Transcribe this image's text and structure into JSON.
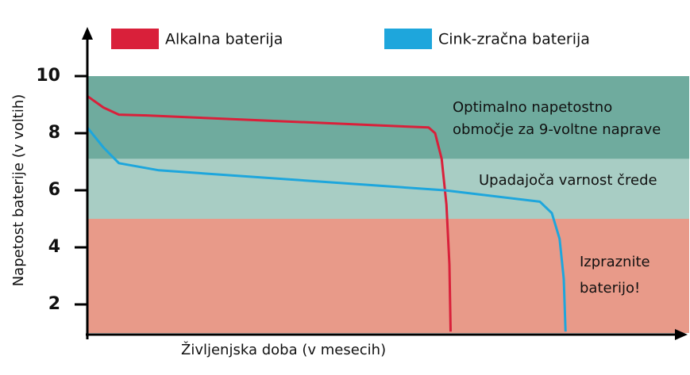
{
  "chart_data": {
    "type": "line",
    "y_label": "Napetost baterije (v voltih)",
    "x_label": "Življenjska doba (v mesecih)",
    "xlim": [
      0,
      100
    ],
    "ylim": [
      1,
      11.6
    ],
    "yticks": [
      2,
      4,
      6,
      8,
      10
    ],
    "bands": [
      {
        "from": 7.1,
        "to": 10,
        "color": "#6fab9e",
        "label": [
          "Optimalno napetostno",
          "območje za 9-voltne naprave"
        ]
      },
      {
        "from": 5,
        "to": 7.1,
        "color": "#a8cdc4",
        "label": [
          "Upadajoča varnost črede"
        ]
      },
      {
        "from": 1,
        "to": 5,
        "color": "#e89a89",
        "label": [
          "Izpraznite",
          "baterijo!"
        ]
      }
    ],
    "series": [
      {
        "name": "Alkalna baterija",
        "color": "#d9203a",
        "x": [
          0,
          2.7,
          5.3,
          10,
          57.3,
          58.4,
          59.5,
          60.3,
          60.8,
          61
        ],
        "values": [
          9.3,
          8.9,
          8.65,
          8.62,
          8.2,
          8.0,
          7.1,
          5.5,
          3.4,
          1.05
        ]
      },
      {
        "name": "Cink-zračna baterija",
        "color": "#1ea6dc",
        "x": [
          0,
          2.7,
          5.3,
          12,
          60,
          76,
          78,
          79.3,
          80,
          80.3
        ],
        "values": [
          8.2,
          7.5,
          6.95,
          6.7,
          6.0,
          5.6,
          5.2,
          4.3,
          2.9,
          1.05
        ]
      }
    ]
  }
}
